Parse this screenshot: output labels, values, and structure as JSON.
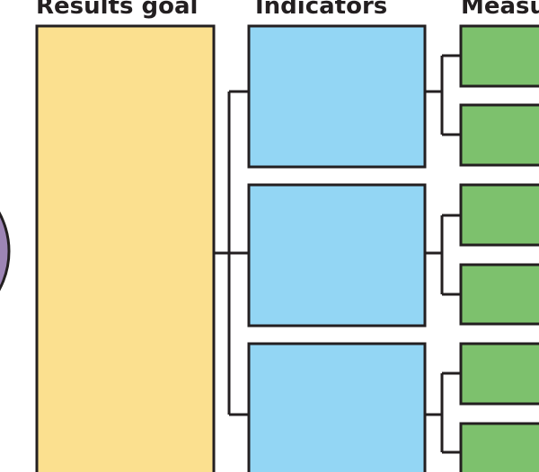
{
  "headers": [
    "Results goal",
    "Indicators",
    "Measu"
  ]
}
